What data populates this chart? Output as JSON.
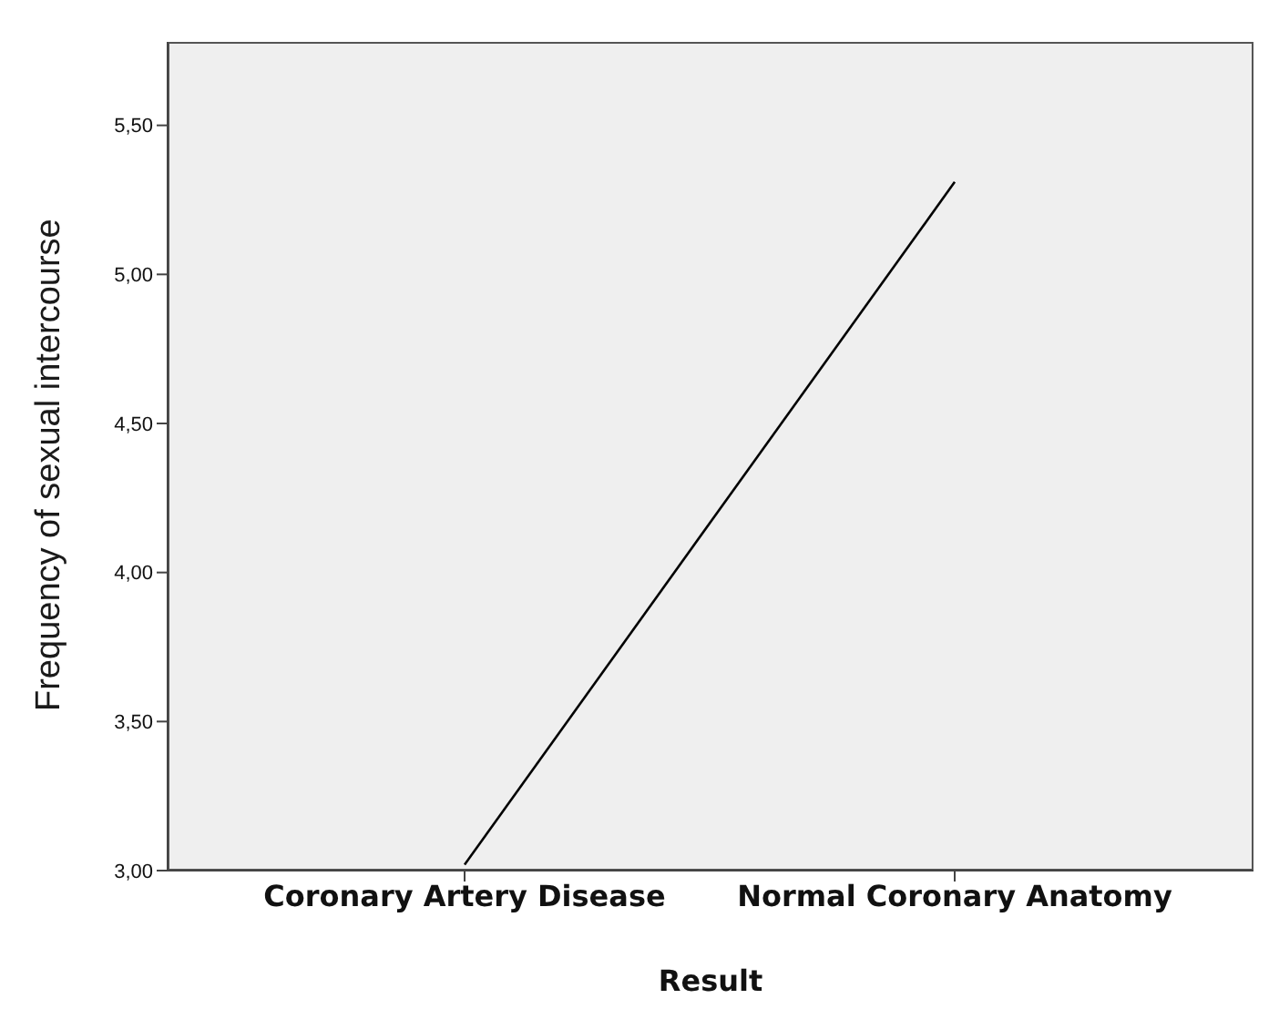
{
  "chart_data": {
    "type": "line",
    "xlabel": "Result",
    "ylabel": "Frequency of sexual intercourse",
    "categories": [
      "Coronary Artery Disease",
      "Normal Coronary Anatomy"
    ],
    "series": [
      {
        "color": "#000000",
        "values": [
          3.02,
          5.31
        ]
      }
    ],
    "ylim": [
      3.0,
      5.78
    ],
    "yticks": [
      {
        "value": 3.0,
        "label": "3,00"
      },
      {
        "value": 3.5,
        "label": "3,50"
      },
      {
        "value": 4.0,
        "label": "4,00"
      },
      {
        "value": 4.5,
        "label": "4,50"
      },
      {
        "value": 5.0,
        "label": "5,00"
      },
      {
        "value": 5.5,
        "label": "5,50"
      }
    ],
    "marker": "none",
    "line_style": "solid"
  }
}
